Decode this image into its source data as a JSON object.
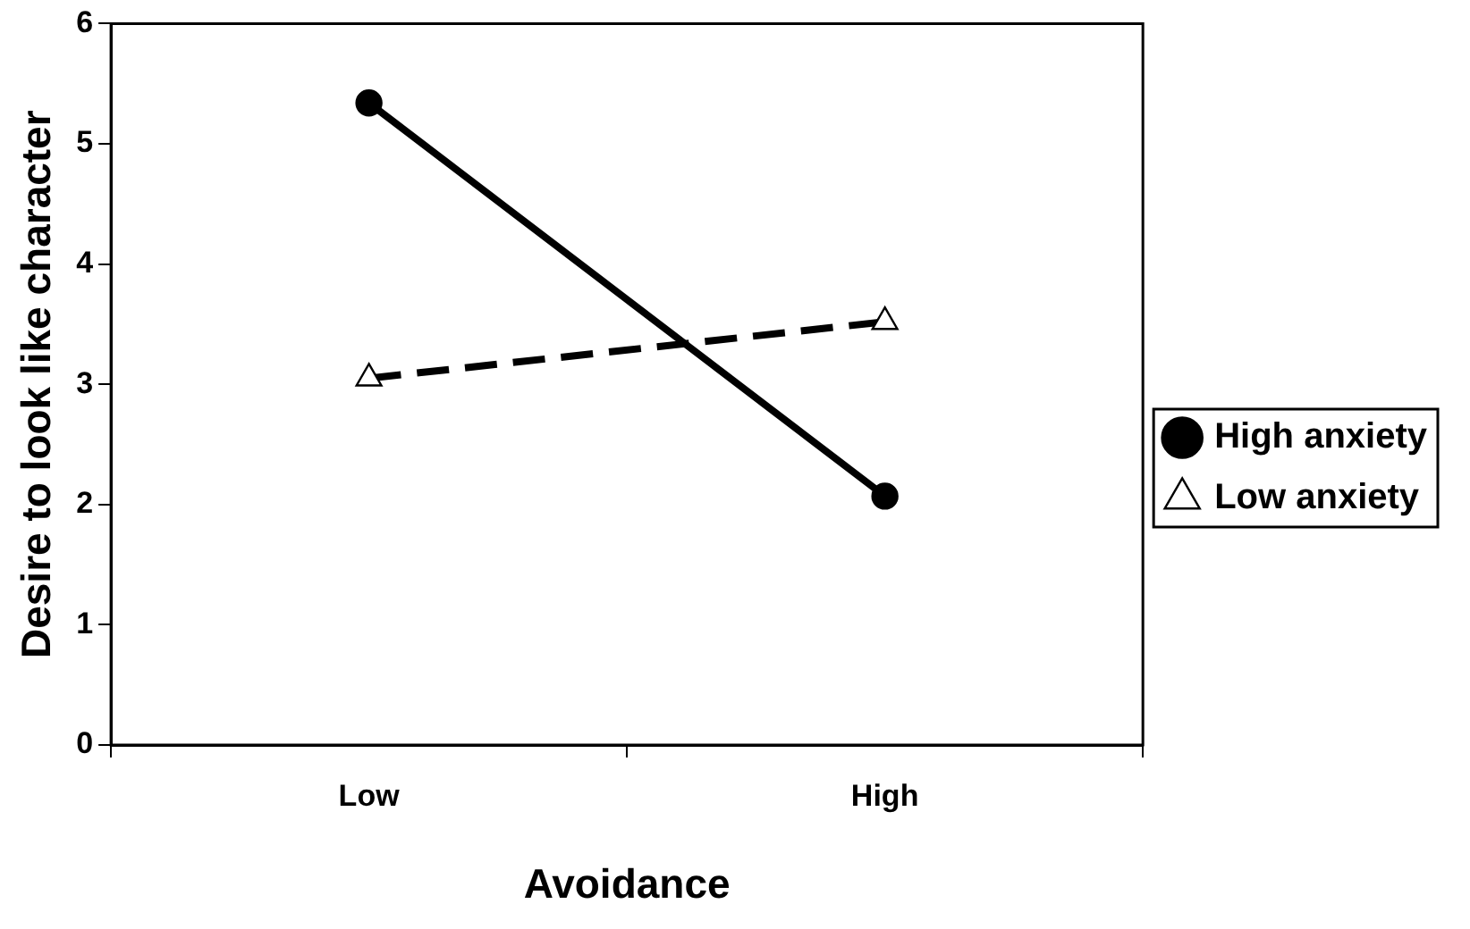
{
  "chart_data": {
    "type": "line",
    "xlabel": "Avoidance",
    "ylabel": "Desire to look like character",
    "categories": [
      "Low",
      "High"
    ],
    "series": [
      {
        "name": "High anxiety",
        "color": "#000000",
        "values": [
          5.34,
          2.07
        ],
        "marker": "circle",
        "line_style": "solid"
      },
      {
        "name": "Low anxiety",
        "color": "#000000",
        "values": [
          3.05,
          3.52
        ],
        "marker": "triangle",
        "line_style": "dashed"
      }
    ],
    "ylim": [
      0,
      6
    ],
    "yticks": [
      0,
      1,
      2,
      3,
      4,
      5,
      6
    ],
    "grid": false,
    "legend": "right"
  }
}
